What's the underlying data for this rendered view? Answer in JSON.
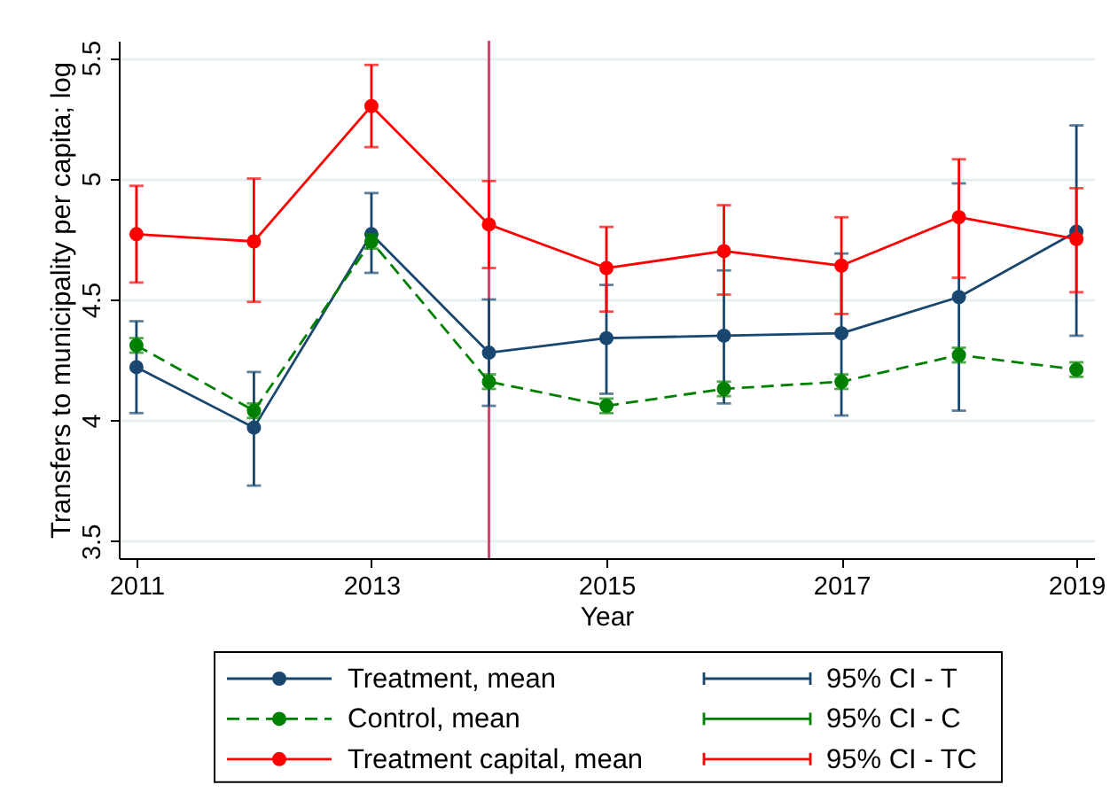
{
  "chart_data": {
    "type": "line",
    "xlabel": "Year",
    "ylabel": "Transfers to municipality per capita; log",
    "x": [
      2011,
      2012,
      2013,
      2014,
      2015,
      2016,
      2017,
      2018,
      2019
    ],
    "xlim": [
      2010.85,
      2019.15
    ],
    "xticks": [
      2011,
      2013,
      2015,
      2017,
      2019
    ],
    "ylim": [
      3.43,
      5.57
    ],
    "yticks": [
      3.5,
      4,
      4.5,
      5,
      5.5
    ],
    "grid": "y",
    "legend": "bottom",
    "marker": "circle",
    "line_style": "solid",
    "series": [
      {
        "name": "Treatment, mean",
        "color": "#1a476f",
        "values": [
          4.22,
          3.97,
          4.77,
          4.28,
          4.34,
          4.35,
          4.36,
          4.51,
          4.78
        ],
        "errors": [
          [
            4.03,
            4.41
          ],
          [
            3.73,
            4.2
          ],
          [
            4.61,
            4.94
          ],
          [
            4.06,
            4.5
          ],
          [
            4.11,
            4.56
          ],
          [
            4.07,
            4.62
          ],
          [
            4.02,
            4.69
          ],
          [
            4.04,
            4.98
          ],
          [
            4.35,
            5.22
          ]
        ]
      },
      {
        "name": "Control, mean",
        "color": "#008000",
        "line_style": "dashed",
        "values": [
          4.31,
          4.04,
          4.74,
          4.16,
          4.06,
          4.13,
          4.16,
          4.27,
          4.21
        ],
        "errors": [
          [
            4.28,
            4.34
          ],
          [
            4.01,
            4.07
          ],
          [
            4.71,
            4.77
          ],
          [
            4.13,
            4.19
          ],
          [
            4.03,
            4.09
          ],
          [
            4.1,
            4.16
          ],
          [
            4.13,
            4.19
          ],
          [
            4.24,
            4.3
          ],
          [
            4.18,
            4.24
          ]
        ]
      },
      {
        "name": "Treatment capital, mean",
        "color": "#ff0000",
        "values": [
          4.77,
          4.74,
          5.3,
          4.81,
          4.63,
          4.7,
          4.64,
          4.84,
          4.75
        ],
        "errors": [
          [
            4.57,
            4.97
          ],
          [
            4.49,
            5.0
          ],
          [
            5.13,
            5.47
          ],
          [
            4.63,
            4.99
          ],
          [
            4.45,
            4.8
          ],
          [
            4.52,
            4.89
          ],
          [
            4.44,
            4.84
          ],
          [
            4.59,
            5.08
          ],
          [
            4.53,
            4.96
          ]
        ]
      }
    ],
    "ref_lines": [
      {
        "axis": "x",
        "value": 2014,
        "color": "#c94a6a"
      }
    ],
    "annotations": [
      "95% CI - T",
      "95% CI - C",
      "95% CI - TC"
    ]
  }
}
